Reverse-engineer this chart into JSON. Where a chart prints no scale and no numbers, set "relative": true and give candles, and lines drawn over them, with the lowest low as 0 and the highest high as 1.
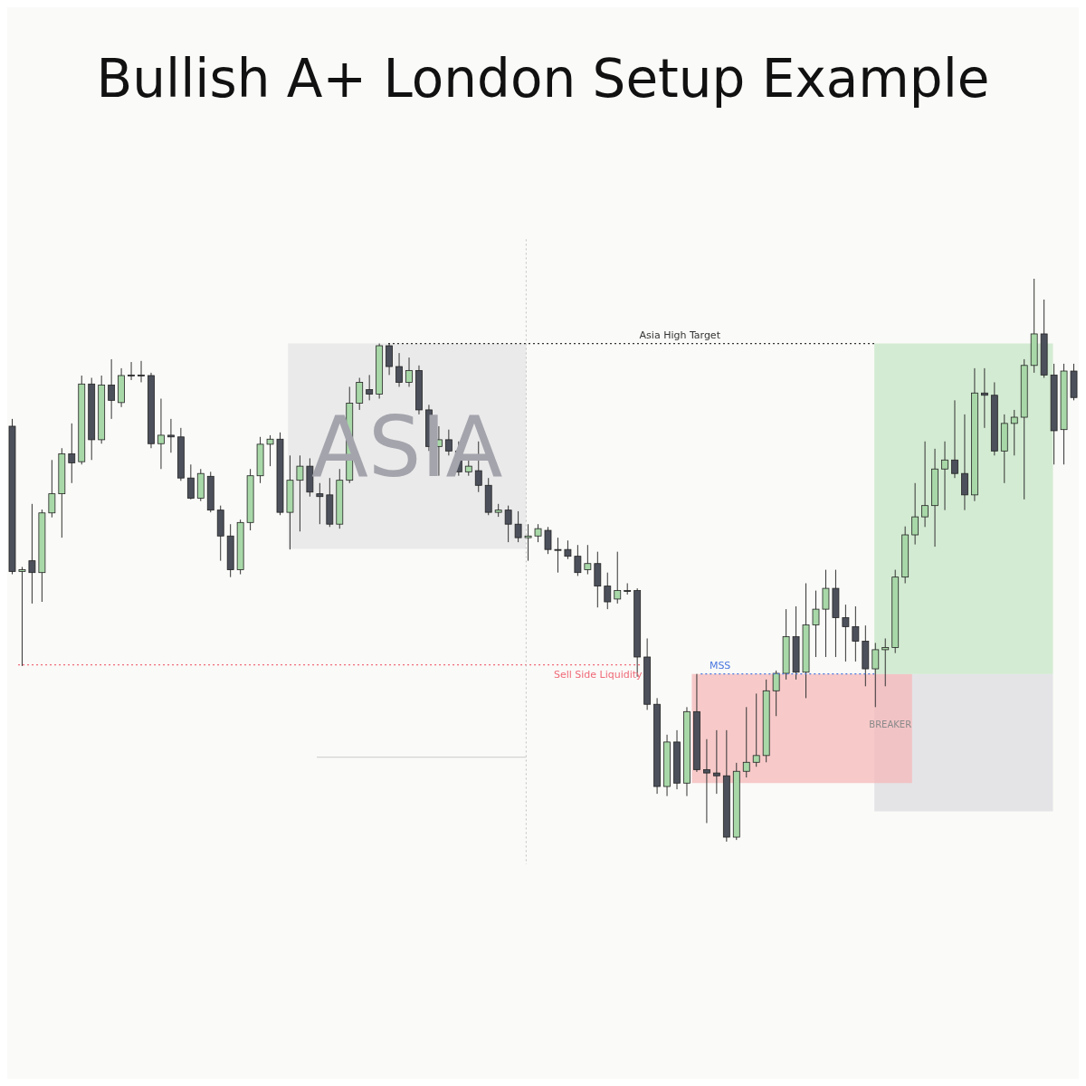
{
  "chart_data": {
    "type": "candlestick",
    "title": "Bullish A+ London Setup Example",
    "relative": true,
    "tick_labels": false,
    "categories": [
      null,
      null,
      null,
      null,
      null,
      null,
      null,
      null,
      null,
      null,
      null,
      null,
      null,
      null,
      null,
      null,
      null,
      null,
      null,
      null,
      null,
      null,
      null,
      null,
      null,
      null,
      null,
      null,
      null,
      null,
      null,
      null,
      null,
      null,
      null,
      null,
      null,
      null,
      null,
      null,
      null,
      null,
      null,
      null,
      null,
      null,
      null,
      null,
      null,
      null,
      null,
      null,
      null,
      null,
      null,
      null,
      null,
      null,
      null,
      null,
      null,
      null,
      null,
      null,
      null,
      null,
      null,
      null,
      null,
      null,
      null,
      null,
      null,
      null,
      null,
      null,
      null,
      null,
      null,
      null,
      null,
      null,
      null,
      null,
      null,
      null,
      null,
      null,
      null,
      null,
      null,
      null,
      null,
      null,
      null,
      null,
      null,
      null,
      null,
      null,
      null,
      null,
      null,
      null,
      null,
      null,
      null,
      null
    ],
    "ohlc": [
      [
        0.738,
        0.751,
        0.475,
        0.48
      ],
      [
        0.48,
        0.488,
        0.312,
        0.483
      ],
      [
        0.499,
        0.6,
        0.423,
        0.478
      ],
      [
        0.478,
        0.59,
        0.426,
        0.584
      ],
      [
        0.584,
        0.678,
        0.576,
        0.618
      ],
      [
        0.618,
        0.699,
        0.54,
        0.689
      ],
      [
        0.689,
        0.743,
        0.637,
        0.673
      ],
      [
        0.675,
        0.828,
        0.67,
        0.813
      ],
      [
        0.813,
        0.824,
        0.678,
        0.714
      ],
      [
        0.714,
        0.828,
        0.707,
        0.811
      ],
      [
        0.811,
        0.857,
        0.751,
        0.784
      ],
      [
        0.78,
        0.841,
        0.772,
        0.828
      ],
      [
        0.829,
        0.852,
        0.82,
        0.829
      ],
      [
        0.829,
        0.854,
        0.816,
        0.828
      ],
      [
        0.828,
        0.833,
        0.699,
        0.707
      ],
      [
        0.707,
        0.787,
        0.662,
        0.722
      ],
      [
        0.722,
        0.751,
        0.691,
        0.719
      ],
      [
        0.719,
        0.735,
        0.641,
        0.646
      ],
      [
        0.646,
        0.67,
        0.608,
        0.61
      ],
      [
        0.61,
        0.662,
        0.605,
        0.654
      ],
      [
        0.649,
        0.657,
        0.585,
        0.589
      ],
      [
        0.589,
        0.597,
        0.499,
        0.543
      ],
      [
        0.543,
        0.564,
        0.47,
        0.483
      ],
      [
        0.483,
        0.572,
        0.475,
        0.567
      ],
      [
        0.567,
        0.662,
        0.553,
        0.65
      ],
      [
        0.65,
        0.719,
        0.637,
        0.706
      ],
      [
        0.706,
        0.722,
        0.667,
        0.715
      ],
      [
        0.715,
        0.727,
        0.58,
        0.585
      ],
      [
        0.585,
        0.686,
        0.519,
        0.642
      ],
      [
        0.642,
        0.686,
        0.551,
        0.667
      ],
      [
        0.667,
        0.681,
        0.613,
        0.621
      ],
      [
        0.618,
        0.637,
        0.564,
        0.613
      ],
      [
        0.616,
        0.646,
        0.559,
        0.564
      ],
      [
        0.564,
        0.662,
        0.556,
        0.642
      ],
      [
        0.642,
        0.808,
        0.637,
        0.779
      ],
      [
        0.779,
        0.824,
        0.767,
        0.816
      ],
      [
        0.803,
        0.829,
        0.784,
        0.795
      ],
      [
        0.795,
        0.885,
        0.787,
        0.881
      ],
      [
        0.881,
        0.885,
        0.829,
        0.844
      ],
      [
        0.844,
        0.868,
        0.808,
        0.816
      ],
      [
        0.816,
        0.86,
        0.808,
        0.837
      ],
      [
        0.837,
        0.846,
        0.759,
        0.767
      ],
      [
        0.767,
        0.776,
        0.694,
        0.702
      ],
      [
        0.702,
        0.738,
        0.65,
        0.714
      ],
      [
        0.714,
        0.732,
        0.686,
        0.694
      ],
      [
        0.694,
        0.711,
        0.65,
        0.657
      ],
      [
        0.657,
        0.678,
        0.65,
        0.667
      ],
      [
        0.659,
        0.711,
        0.621,
        0.633
      ],
      [
        0.633,
        0.646,
        0.58,
        0.585
      ],
      [
        0.585,
        0.6,
        0.577,
        0.589
      ],
      [
        0.589,
        0.597,
        0.532,
        0.564
      ],
      [
        0.564,
        0.587,
        0.532,
        0.54
      ],
      [
        0.54,
        0.564,
        0.499,
        0.543
      ],
      [
        0.543,
        0.564,
        0.532,
        0.556
      ],
      [
        0.553,
        0.559,
        0.511,
        0.519
      ],
      [
        0.519,
        0.54,
        0.478,
        0.519
      ],
      [
        0.519,
        0.535,
        0.502,
        0.507
      ],
      [
        0.507,
        0.527,
        0.472,
        0.478
      ],
      [
        0.483,
        0.527,
        0.475,
        0.494
      ],
      [
        0.494,
        0.515,
        0.416,
        0.454
      ],
      [
        0.454,
        0.478,
        0.413,
        0.426
      ],
      [
        0.431,
        0.515,
        0.423,
        0.446
      ],
      [
        0.446,
        0.459,
        0.439,
        0.446
      ],
      [
        0.446,
        0.45,
        0.293,
        0.328
      ],
      [
        0.328,
        0.361,
        0.234,
        0.244
      ],
      [
        0.244,
        0.255,
        0.085,
        0.098
      ],
      [
        0.098,
        0.19,
        0.081,
        0.177
      ],
      [
        0.177,
        0.198,
        0.093,
        0.104
      ],
      [
        0.104,
        0.239,
        0.081,
        0.231
      ],
      [
        0.231,
        0.298,
        0.124,
        0.128
      ],
      [
        0.128,
        0.182,
        0.033,
        0.122
      ],
      [
        0.122,
        0.198,
        0.085,
        0.117
      ],
      [
        0.117,
        0.198,
        0.0,
        0.008
      ],
      [
        0.008,
        0.14,
        0.003,
        0.125
      ],
      [
        0.125,
        0.239,
        0.114,
        0.141
      ],
      [
        0.141,
        0.263,
        0.133,
        0.153
      ],
      [
        0.153,
        0.288,
        0.141,
        0.268
      ],
      [
        0.268,
        0.304,
        0.223,
        0.299
      ],
      [
        0.299,
        0.413,
        0.288,
        0.364
      ],
      [
        0.364,
        0.418,
        0.288,
        0.301
      ],
      [
        0.301,
        0.459,
        0.255,
        0.385
      ],
      [
        0.385,
        0.446,
        0.328,
        0.413
      ],
      [
        0.413,
        0.483,
        0.328,
        0.45
      ],
      [
        0.45,
        0.483,
        0.328,
        0.398
      ],
      [
        0.398,
        0.421,
        0.32,
        0.382
      ],
      [
        0.382,
        0.418,
        0.32,
        0.356
      ],
      [
        0.356,
        0.384,
        0.276,
        0.307
      ],
      [
        0.307,
        0.353,
        0.239,
        0.341
      ],
      [
        0.341,
        0.361,
        0.276,
        0.345
      ],
      [
        0.345,
        0.483,
        0.335,
        0.47
      ],
      [
        0.47,
        0.56,
        0.459,
        0.545
      ],
      [
        0.545,
        0.637,
        0.528,
        0.577
      ],
      [
        0.577,
        0.711,
        0.559,
        0.597
      ],
      [
        0.597,
        0.698,
        0.524,
        0.662
      ],
      [
        0.662,
        0.711,
        0.589,
        0.678
      ],
      [
        0.678,
        0.784,
        0.646,
        0.654
      ],
      [
        0.654,
        0.759,
        0.589,
        0.616
      ],
      [
        0.616,
        0.841,
        0.605,
        0.797
      ],
      [
        0.797,
        0.841,
        0.735,
        0.793
      ],
      [
        0.793,
        0.816,
        0.686,
        0.694
      ],
      [
        0.694,
        0.759,
        0.637,
        0.743
      ],
      [
        0.743,
        0.767,
        0.686,
        0.754
      ],
      [
        0.754,
        0.857,
        0.608,
        0.846
      ],
      [
        0.846,
        1.0,
        0.833,
        0.902
      ],
      [
        0.902,
        0.963,
        0.824,
        0.829
      ],
      [
        0.829,
        0.849,
        0.67,
        0.73
      ],
      [
        0.732,
        0.849,
        0.67,
        0.836
      ],
      [
        0.836,
        0.849,
        0.784,
        0.789
      ]
    ],
    "colors": [
      "#4c505b",
      "#a8d8a8",
      "#4c505b",
      "#a8d8a8",
      "#a8d8a8",
      "#a8d8a8",
      "#4c505b",
      "#a8d8a8",
      "#4c505b",
      "#a8d8a8",
      "#4c505b",
      "#a8d8a8",
      "#4c505b",
      "#4c505b",
      "#4c505b",
      "#a8d8a8",
      "#4c505b",
      "#4c505b",
      "#4c505b",
      "#a8d8a8",
      "#4c505b",
      "#4c505b",
      "#4c505b",
      "#a8d8a8",
      "#a8d8a8",
      "#a8d8a8",
      "#a8d8a8",
      "#4c505b",
      "#a8d8a8",
      "#a8d8a8",
      "#4c505b",
      "#4c505b",
      "#4c505b",
      "#a8d8a8",
      "#a8d8a8",
      "#a8d8a8",
      "#4c505b",
      "#a8d8a8",
      "#4c505b",
      "#4c505b",
      "#a8d8a8",
      "#4c505b",
      "#4c505b",
      "#a8d8a8",
      "#4c505b",
      "#4c505b",
      "#a8d8a8",
      "#4c505b",
      "#4c505b",
      "#a8d8a8",
      "#4c505b",
      "#4c505b",
      "#a8d8a8",
      "#a8d8a8",
      "#4c505b",
      "#4c505b",
      "#4c505b",
      "#4c505b",
      "#a8d8a8",
      "#4c505b",
      "#4c505b",
      "#a8d8a8",
      "#4c505b",
      "#4c505b",
      "#4c505b",
      "#4c505b",
      "#a8d8a8",
      "#4c505b",
      "#a8d8a8",
      "#4c505b",
      "#4c505b",
      "#4c505b",
      "#4c505b",
      "#a8d8a8",
      "#a8d8a8",
      "#a8d8a8",
      "#a8d8a8",
      "#a8d8a8",
      "#a8d8a8",
      "#4c505b",
      "#a8d8a8",
      "#a8d8a8",
      "#a8d8a8",
      "#4c505b",
      "#4c505b",
      "#4c505b",
      "#4c505b",
      "#a8d8a8",
      "#a8d8a8",
      "#a8d8a8",
      "#a8d8a8",
      "#a8d8a8",
      "#a8d8a8",
      "#a8d8a8",
      "#a8d8a8",
      "#4c505b",
      "#4c505b",
      "#a8d8a8",
      "#4c505b",
      "#4c505b",
      "#a8d8a8",
      "#a8d8a8",
      "#a8d8a8",
      "#a8d8a8",
      "#4c505b",
      "#4c505b",
      "#a8d8a8",
      "#4c505b"
    ],
    "bands": [
      {
        "axis": "y",
        "from": 0.52,
        "to": 0.885,
        "label": "ASIA",
        "color": "#e4e4e6"
      },
      {
        "axis": "y",
        "from": 0.054,
        "to": 0.298,
        "color": "#dcdce2"
      },
      {
        "axis": "y",
        "from": 0.104,
        "to": 0.298,
        "color": "#f5b8ba"
      },
      {
        "axis": "y",
        "from": 0.298,
        "to": 0.885,
        "color": "#c6e5c6"
      }
    ],
    "ref_lines": [
      {
        "axis": "y",
        "value": 0.885,
        "label": "Asia High Target",
        "color": "#333333",
        "line_style": "dotted"
      },
      {
        "axis": "y",
        "value": 0.314,
        "label": "Sell Side Liquidity",
        "color": "#f06a78",
        "line_style": "dotted"
      },
      {
        "axis": "y",
        "value": 0.298,
        "label": "MSS",
        "color": "#4a78e0",
        "line_style": "dotted"
      },
      {
        "axis": "y",
        "value": 0.15,
        "color": "#d4d4d4",
        "line_style": "solid"
      }
    ],
    "annotations": [
      "BREAKER"
    ]
  }
}
